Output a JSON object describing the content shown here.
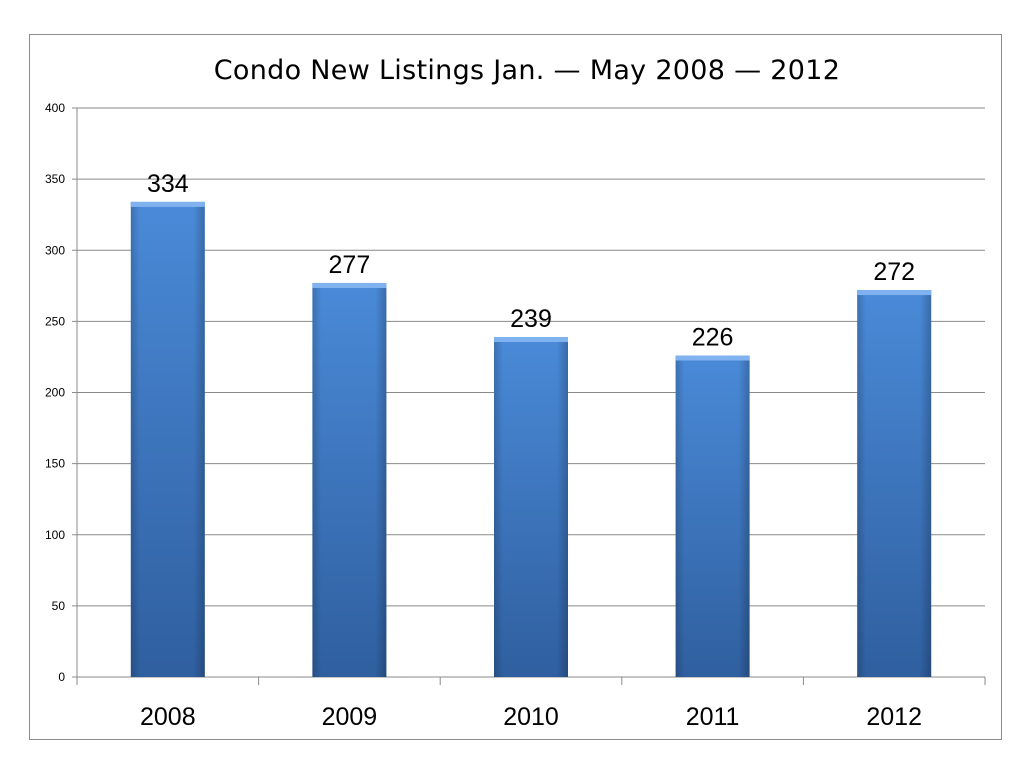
{
  "chart_data": {
    "type": "bar",
    "title": "Condo New Listings Jan. — May 2008 — 2012",
    "categories": [
      "2008",
      "2009",
      "2010",
      "2011",
      "2012"
    ],
    "values": [
      334,
      277,
      239,
      226,
      272
    ],
    "data_labels": [
      "334",
      "277",
      "239",
      "226",
      "272"
    ],
    "ylim": [
      0,
      400
    ],
    "yticks": [
      "0",
      "50",
      "100",
      "150",
      "200",
      "250",
      "300",
      "350",
      "400"
    ],
    "xlabel": "",
    "ylabel": "",
    "grid": true,
    "legend": "none",
    "bar_color": "#3f7fcf",
    "bar_color_dark": "#2e5f9e"
  }
}
